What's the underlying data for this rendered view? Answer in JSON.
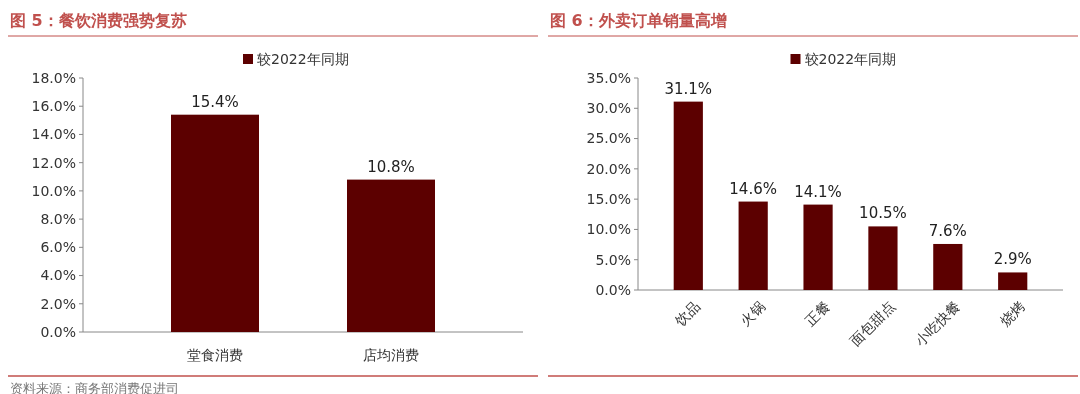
{
  "chart_data": [
    {
      "type": "bar",
      "title": "图 5：餐饮消费强势复苏",
      "categories": [
        "堂食消费",
        "店均消费"
      ],
      "series": [
        {
          "name": "较2022年同期",
          "color": "#5c0000",
          "values": [
            15.4,
            10.8
          ],
          "value_labels": [
            "15.4%",
            "10.8%"
          ]
        }
      ],
      "ylim": [
        0,
        18
      ],
      "yticks": [
        {
          "value": 0,
          "label": "0.0%"
        },
        {
          "value": 2,
          "label": "2.0%"
        },
        {
          "value": 4,
          "label": "4.0%"
        },
        {
          "value": 6,
          "label": "6.0%"
        },
        {
          "value": 8,
          "label": "8.0%"
        },
        {
          "value": 10,
          "label": "10.0%"
        },
        {
          "value": 12,
          "label": "12.0%"
        },
        {
          "value": 14,
          "label": "14.0%"
        },
        {
          "value": 16,
          "label": "16.0%"
        },
        {
          "value": 18,
          "label": "18.0%"
        }
      ],
      "legend": "top",
      "annotations": [
        "资料来源：商务部消费促进司"
      ]
    },
    {
      "type": "bar",
      "title": "图 6：外卖订单销量高增",
      "categories": [
        "饮品",
        "火锅",
        "正餐",
        "面包甜点",
        "小吃快餐",
        "烧烤"
      ],
      "series": [
        {
          "name": "较2022年同期",
          "color": "#5c0000",
          "values": [
            31.1,
            14.6,
            14.1,
            10.5,
            7.6,
            2.9
          ],
          "value_labels": [
            "31.1%",
            "14.6%",
            "14.1%",
            "10.5%",
            "7.6%",
            "2.9%"
          ]
        }
      ],
      "ylim": [
        0,
        35
      ],
      "yticks": [
        {
          "value": 0,
          "label": "0.0%"
        },
        {
          "value": 5,
          "label": "5.0%"
        },
        {
          "value": 10,
          "label": "10.0%"
        },
        {
          "value": 15,
          "label": "15.0%"
        },
        {
          "value": 20,
          "label": "20.0%"
        },
        {
          "value": 25,
          "label": "25.0%"
        },
        {
          "value": 30,
          "label": "30.0%"
        },
        {
          "value": 35,
          "label": "35.0%"
        }
      ],
      "legend": "top"
    }
  ]
}
